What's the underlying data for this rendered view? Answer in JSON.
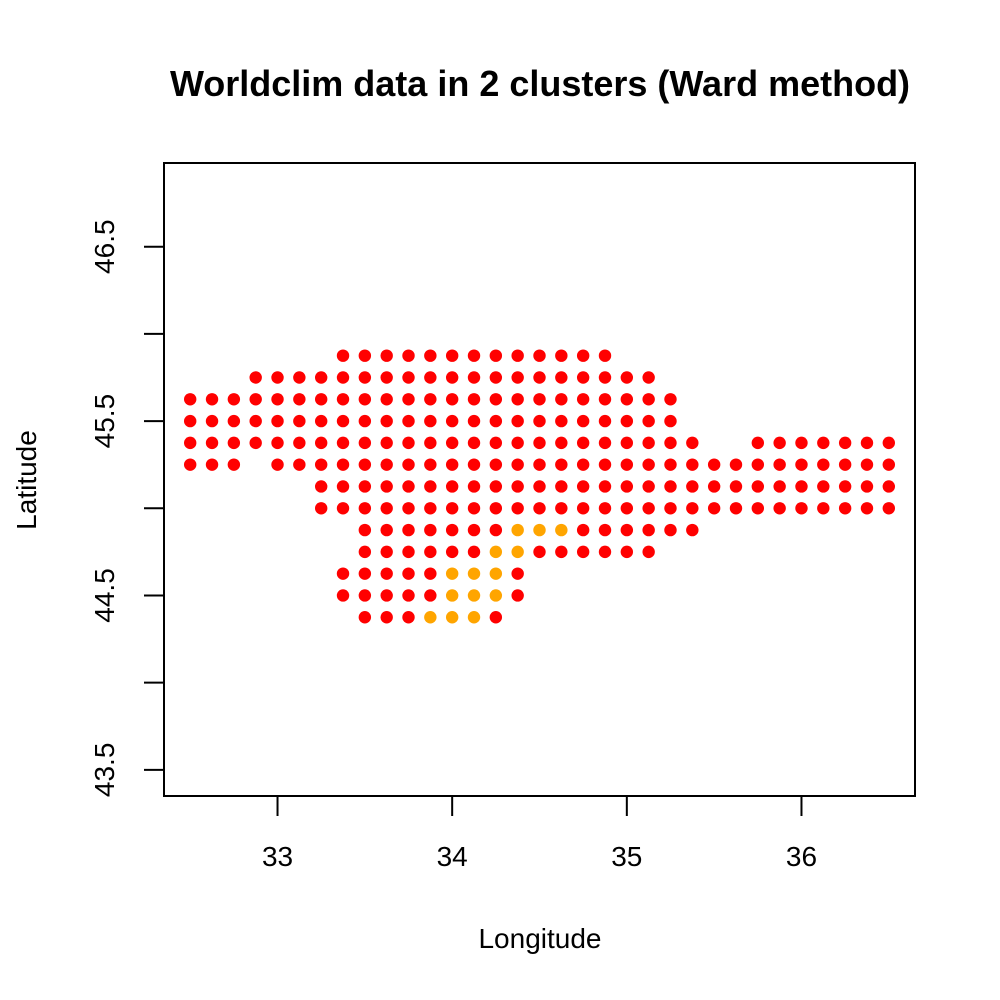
{
  "chart_data": {
    "type": "scatter",
    "title": "Worldclim data in 2 clusters (Ward method)",
    "xlabel": "Longitude",
    "ylabel": "Latitude",
    "xlim": [
      32.35,
      36.65
    ],
    "ylim": [
      43.35,
      46.98
    ],
    "x_ticks": [
      33,
      34,
      35,
      36
    ],
    "y_ticks": [
      43.5,
      44,
      44.5,
      45,
      45.5,
      46,
      46.5
    ],
    "y_tick_labels": [
      "43.5",
      "",
      "44.5",
      "",
      "45.5",
      "",
      "46.5"
    ],
    "grid": false,
    "legend": "none",
    "cluster_colors": {
      "1": "#FF0000",
      "2": "#FFA500"
    },
    "grid_spacing": 0.125,
    "rows": [
      {
        "y": 45.875,
        "x_ranges": [
          [
            33.375,
            34.875
          ]
        ]
      },
      {
        "y": 45.75,
        "x_ranges": [
          [
            32.875,
            35.125
          ]
        ]
      },
      {
        "y": 45.625,
        "x_ranges": [
          [
            32.5,
            35.25
          ]
        ]
      },
      {
        "y": 45.5,
        "x_ranges": [
          [
            32.5,
            35.25
          ]
        ]
      },
      {
        "y": 45.375,
        "x_ranges": [
          [
            32.5,
            35.375
          ],
          [
            35.75,
            36.5
          ]
        ]
      },
      {
        "y": 45.25,
        "x_ranges": [
          [
            32.5,
            32.75
          ],
          [
            33.0,
            36.5
          ]
        ]
      },
      {
        "y": 45.125,
        "x_ranges": [
          [
            33.25,
            36.5
          ]
        ]
      },
      {
        "y": 45.0,
        "x_ranges": [
          [
            33.25,
            36.5
          ]
        ]
      },
      {
        "y": 44.875,
        "x_ranges": [
          [
            33.5,
            35.375
          ]
        ]
      },
      {
        "y": 44.75,
        "x_ranges": [
          [
            33.5,
            35.125
          ]
        ]
      },
      {
        "y": 44.625,
        "x_ranges": [
          [
            33.375,
            34.375
          ]
        ]
      },
      {
        "y": 44.5,
        "x_ranges": [
          [
            33.375,
            34.375
          ]
        ]
      },
      {
        "y": 44.375,
        "x_ranges": [
          [
            33.5,
            34.25
          ]
        ]
      }
    ],
    "cluster2_points": [
      [
        34.375,
        44.875
      ],
      [
        34.5,
        44.875
      ],
      [
        34.625,
        44.875
      ],
      [
        34.25,
        44.75
      ],
      [
        34.375,
        44.75
      ],
      [
        34.0,
        44.625
      ],
      [
        34.125,
        44.625
      ],
      [
        34.25,
        44.625
      ],
      [
        34.0,
        44.5
      ],
      [
        34.125,
        44.5
      ],
      [
        34.25,
        44.5
      ],
      [
        33.875,
        44.375
      ],
      [
        34.0,
        44.375
      ],
      [
        34.125,
        44.375
      ]
    ]
  }
}
